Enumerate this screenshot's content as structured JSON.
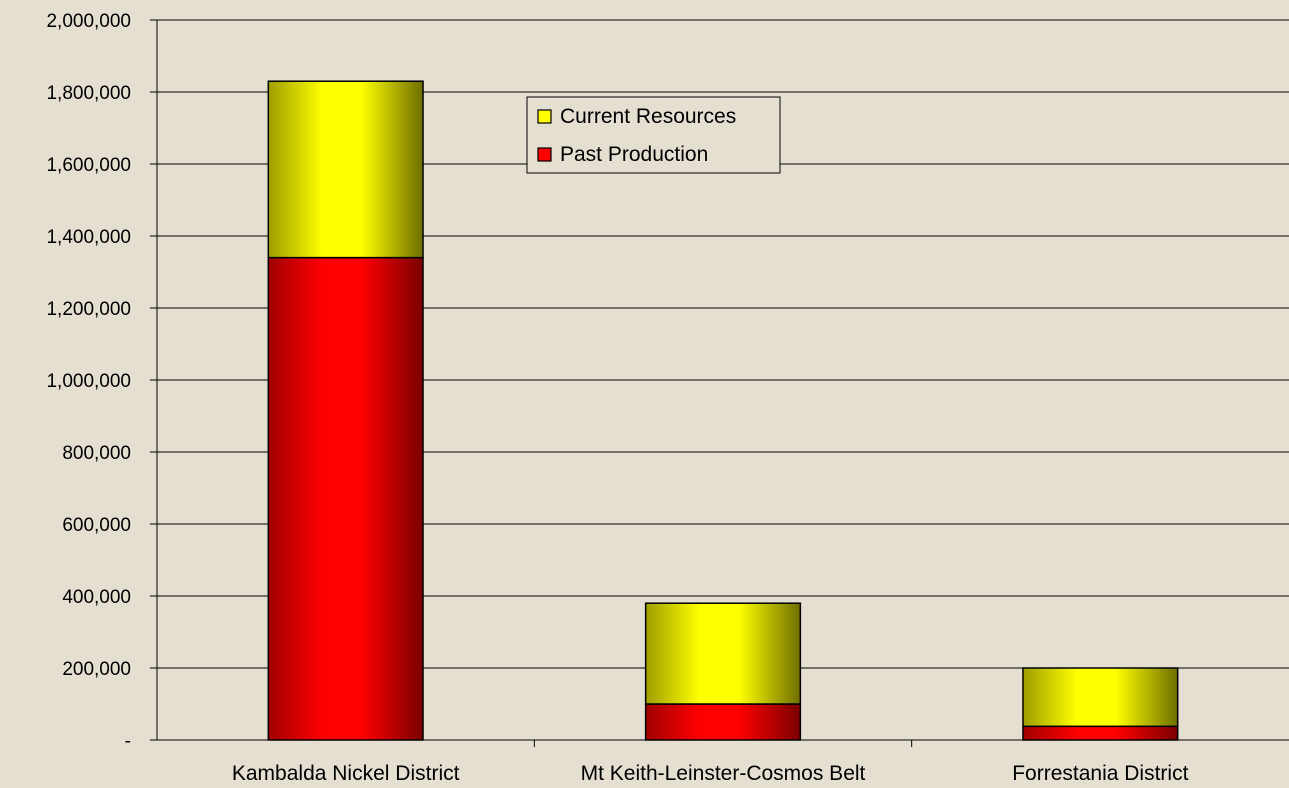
{
  "chart_data": {
    "type": "bar",
    "stacked": true,
    "categories": [
      "Kambalda Nickel District",
      "Mt Keith-Leinster-Cosmos Belt",
      "Forrestania District"
    ],
    "series": [
      {
        "name": "Past Production",
        "values": [
          1340000,
          100000,
          38000
        ],
        "color": "#ff0000"
      },
      {
        "name": "Current Resources",
        "values": [
          490000,
          280000,
          162000
        ],
        "color": "#ffff00"
      }
    ],
    "legend_order": [
      "Current Resources",
      "Past Production"
    ],
    "legend_position": "top-center",
    "ylim": [
      0,
      2000000
    ],
    "yticks": [
      0,
      200000,
      400000,
      600000,
      800000,
      1000000,
      1200000,
      1400000,
      1600000,
      1800000,
      2000000
    ],
    "ytick_labels": [
      "-",
      "200,000",
      "400,000",
      "600,000",
      "800,000",
      "1,000,000",
      "1,200,000",
      "1,400,000",
      "1,600,000",
      "1,800,000",
      "2,000,000"
    ],
    "grid": true,
    "title": "",
    "xlabel": "",
    "ylabel": ""
  }
}
